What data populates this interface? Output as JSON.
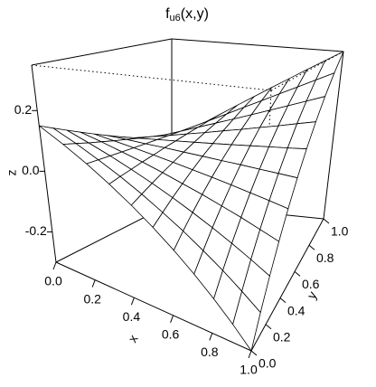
{
  "chart_data": {
    "type": "surface",
    "title": {
      "main": "f",
      "subscript": "u6",
      "args": "(x,y)"
    },
    "x_label": "x",
    "y_label": "y",
    "z_label": "z",
    "x": [
      0,
      0.1,
      0.2,
      0.3,
      0.4,
      0.5,
      0.6,
      0.7,
      0.8,
      0.9,
      1
    ],
    "y": [
      0,
      0.1,
      0.2,
      0.3,
      0.4,
      0.5,
      0.6,
      0.7,
      0.8,
      0.9,
      1
    ],
    "z": [
      [
        0.15,
        0.13,
        0.11,
        0.09,
        0.07,
        0.05,
        0.03,
        0.01,
        -0.01,
        -0.03,
        -0.05
      ],
      [
        0.105,
        0.094,
        0.082,
        0.071,
        0.059,
        0.048,
        0.036,
        0.025,
        0.013,
        0.002,
        -0.01
      ],
      [
        0.06,
        0.057,
        0.054,
        0.051,
        0.048,
        0.045,
        0.042,
        0.039,
        0.036,
        0.033,
        0.03
      ],
      [
        0.015,
        0.021,
        0.026,
        0.032,
        0.037,
        0.043,
        0.048,
        0.054,
        0.059,
        0.065,
        0.07
      ],
      [
        -0.03,
        -0.016,
        -0.002,
        0.012,
        0.026,
        0.04,
        0.054,
        0.068,
        0.082,
        0.096,
        0.11
      ],
      [
        -0.075,
        -0.053,
        -0.03,
        -0.008,
        0.015,
        0.038,
        0.06,
        0.083,
        0.105,
        0.128,
        0.15
      ],
      [
        -0.12,
        -0.089,
        -0.058,
        -0.027,
        0.004,
        0.035,
        0.066,
        0.097,
        0.128,
        0.159,
        0.19
      ],
      [
        -0.165,
        -0.126,
        -0.086,
        -0.047,
        -0.007,
        0.033,
        0.072,
        0.112,
        0.151,
        0.191,
        0.23
      ],
      [
        -0.21,
        -0.162,
        -0.114,
        -0.066,
        -0.018,
        0.03,
        0.078,
        0.126,
        0.174,
        0.222,
        0.27
      ],
      [
        -0.255,
        -0.199,
        -0.142,
        -0.086,
        -0.029,
        0.028,
        0.084,
        0.141,
        0.197,
        0.254,
        0.31
      ],
      [
        -0.3,
        -0.235,
        -0.17,
        -0.105,
        -0.04,
        0.025,
        0.09,
        0.155,
        0.22,
        0.285,
        0.35
      ]
    ],
    "xlim": [
      0,
      1
    ],
    "ylim": [
      0,
      1
    ],
    "zlim": [
      -0.3,
      0.35
    ],
    "xticks": [
      {
        "value": 0,
        "label": "0.0"
      },
      0.2,
      0.4,
      0.6,
      0.8,
      {
        "value": 1,
        "label": "1.0"
      }
    ],
    "yticks": [
      {
        "value": 0,
        "label": "0.0"
      },
      0.2,
      0.4,
      0.6,
      0.8,
      {
        "value": 1,
        "label": "1.0"
      }
    ],
    "zticks": [
      -0.2,
      {
        "value": 0,
        "label": "0.0"
      },
      0.2
    ],
    "color": "#ffffff"
  }
}
